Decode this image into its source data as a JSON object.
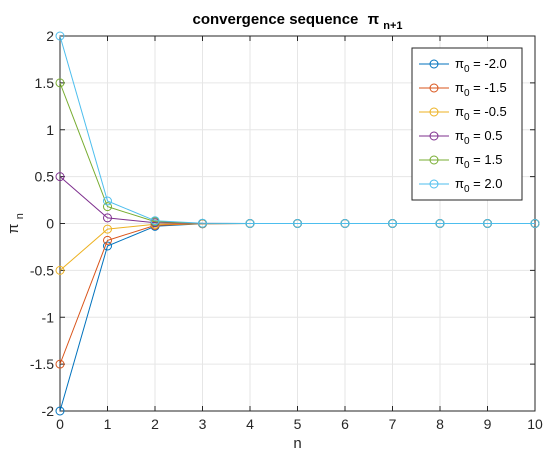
{
  "chart_data": {
    "type": "line",
    "title": "convergence sequence",
    "title_symbol": "π",
    "title_subscript": "n+1",
    "xlabel": "n",
    "ylabel_symbol": "π",
    "ylabel_subscript": "n",
    "xlim": [
      0,
      10
    ],
    "ylim": [
      -2,
      2
    ],
    "xticks": [
      "0",
      "1",
      "2",
      "3",
      "4",
      "5",
      "6",
      "7",
      "8",
      "9",
      "10"
    ],
    "yticks": [
      "-2",
      "-1.5",
      "-1",
      "-0.5",
      "0",
      "0.5",
      "1",
      "1.5",
      "2"
    ],
    "grid": true,
    "legend_position": "top-right",
    "x": [
      0,
      1,
      2,
      3,
      4,
      5,
      6,
      7,
      8,
      9,
      10
    ],
    "series": [
      {
        "name_symbol": "π",
        "name_subscript": "0",
        "name_value": " = -2.0",
        "color": "#0072BD",
        "values": [
          -2.0,
          -0.24,
          -0.03,
          -0.003,
          0,
          0,
          0,
          0,
          0,
          0,
          0
        ]
      },
      {
        "name_symbol": "π",
        "name_subscript": "0",
        "name_value": " = -1.5",
        "color": "#D95319",
        "values": [
          -1.5,
          -0.18,
          -0.02,
          -0.002,
          0,
          0,
          0,
          0,
          0,
          0,
          0
        ]
      },
      {
        "name_symbol": "π",
        "name_subscript": "0",
        "name_value": " = -0.5",
        "color": "#EDB120",
        "values": [
          -0.5,
          -0.06,
          -0.008,
          -0.001,
          0,
          0,
          0,
          0,
          0,
          0,
          0
        ]
      },
      {
        "name_symbol": "π",
        "name_subscript": "0",
        "name_value": " = 0.5",
        "color": "#7E2F8E",
        "values": [
          0.5,
          0.06,
          0.008,
          0.001,
          0,
          0,
          0,
          0,
          0,
          0,
          0
        ]
      },
      {
        "name_symbol": "π",
        "name_subscript": "0",
        "name_value": " = 1.5",
        "color": "#77AC30",
        "values": [
          1.5,
          0.18,
          0.02,
          0.002,
          0,
          0,
          0,
          0,
          0,
          0,
          0
        ]
      },
      {
        "name_symbol": "π",
        "name_subscript": "0",
        "name_value": " = 2.0",
        "color": "#4DBEEE",
        "values": [
          2.0,
          0.24,
          0.03,
          0.003,
          0,
          0,
          0,
          0,
          0,
          0,
          0
        ]
      }
    ]
  }
}
